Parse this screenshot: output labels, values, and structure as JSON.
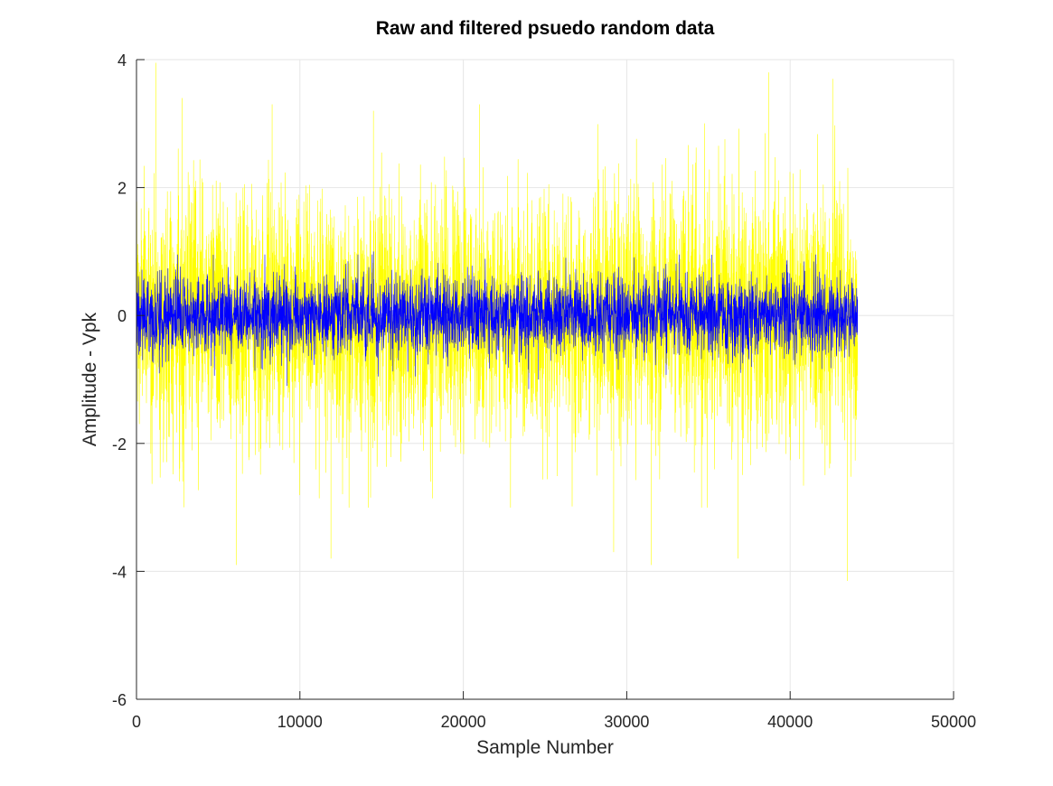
{
  "chart_data": {
    "type": "line",
    "title": "Raw and filtered psuedo random data",
    "xlabel": "Sample Number",
    "ylabel": "Amplitude - Vpk",
    "xlim": [
      0,
      50000
    ],
    "ylim": [
      -6,
      4
    ],
    "x_ticks": [
      0,
      10000,
      20000,
      30000,
      40000,
      50000
    ],
    "x_tick_labels": [
      "0",
      "10000",
      "20000",
      "30000",
      "40000",
      "50000"
    ],
    "y_ticks": [
      -6,
      -4,
      -2,
      0,
      2,
      4
    ],
    "y_tick_labels": [
      "-6",
      "-4",
      "-2",
      "0",
      "2",
      "4"
    ],
    "grid": true,
    "legend": "none",
    "series": [
      {
        "color": "#ffff00",
        "x_range": [
          0,
          44100
        ],
        "envelope": {
          "typical_range": [
            -2.0,
            2.0
          ],
          "peaks": [
            {
              "x": 1200,
              "y": 3.95
            },
            {
              "x": 2800,
              "y": 3.4
            },
            {
              "x": 6100,
              "y": -3.9
            },
            {
              "x": 8300,
              "y": 3.3
            },
            {
              "x": 11900,
              "y": -3.8
            },
            {
              "x": 14500,
              "y": 3.2
            },
            {
              "x": 21000,
              "y": 3.3
            },
            {
              "x": 29200,
              "y": -3.7
            },
            {
              "x": 31500,
              "y": -3.9
            },
            {
              "x": 36800,
              "y": -3.8
            },
            {
              "x": 38700,
              "y": 3.8
            },
            {
              "x": 42600,
              "y": 3.7
            },
            {
              "x": 43500,
              "y": -4.15
            }
          ]
        }
      },
      {
        "color": "#0000ff",
        "x_range": [
          0,
          44100
        ],
        "envelope": {
          "typical_range": [
            -0.65,
            0.65
          ],
          "peaks": [
            {
              "x": 4700,
              "y": 0.95
            },
            {
              "x": 9200,
              "y": -1.1
            },
            {
              "x": 14500,
              "y": 1.0
            },
            {
              "x": 24000,
              "y": -1.15
            },
            {
              "x": 24600,
              "y": -1.0
            },
            {
              "x": 35200,
              "y": 0.95
            },
            {
              "x": 39800,
              "y": 0.85
            }
          ]
        }
      }
    ]
  }
}
